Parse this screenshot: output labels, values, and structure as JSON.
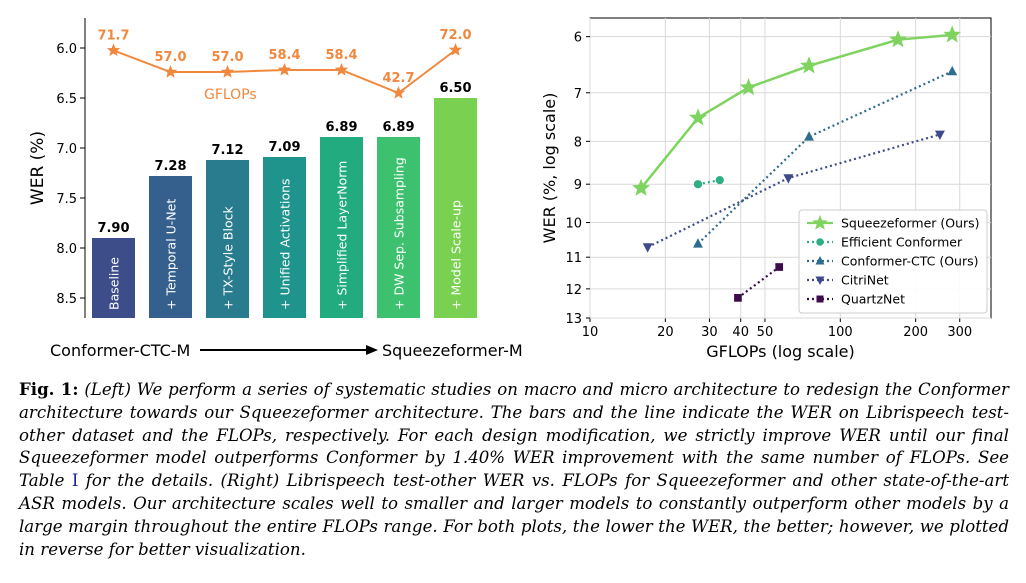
{
  "chart_data": [
    {
      "type": "bar",
      "ylabel": "WER (%)",
      "y_inverted": true,
      "ylim": [
        8.7,
        5.7
      ],
      "yticks": [
        "6.0",
        "6.5",
        "7.0",
        "7.5",
        "8.0",
        "8.5"
      ],
      "categories": [
        "Baseline",
        "+ Temporal U-Net",
        "+ TX-Style Block",
        "+ Unified Activations",
        "+ Simplified LayerNorm",
        "+ DW Sep. Subsampling",
        "+ Model Scale-up"
      ],
      "values": [
        7.9,
        7.28,
        7.12,
        7.09,
        6.89,
        6.89,
        6.5
      ],
      "value_labels": [
        "7.90",
        "7.28",
        "7.12",
        "7.09",
        "6.89",
        "6.89",
        "6.50"
      ],
      "bar_colors": [
        "#3d4d8a",
        "#35608d",
        "#297b8e",
        "#1f948c",
        "#21ab7f",
        "#3ec16f",
        "#7ad151"
      ],
      "line": {
        "name": "GFLOPs",
        "color": "#f0883e",
        "values": [
          71.7,
          57.0,
          57.0,
          58.4,
          58.4,
          42.7,
          72.0
        ],
        "labels": [
          "71.7",
          "57.0",
          "57.0",
          "58.4",
          "58.4",
          "42.7",
          "72.0"
        ]
      },
      "xaxis_left": "Conformer-CTC-M",
      "xaxis_right": "Squeezeformer-M"
    },
    {
      "type": "line",
      "xlabel": "GFLOPs (log scale)",
      "ylabel": "WER (%, log scale)",
      "x_scale": "log",
      "y_scale": "log",
      "y_inverted": true,
      "xlim": [
        10,
        400
      ],
      "ylim": [
        13,
        5.7
      ],
      "xticks": [
        10,
        20,
        30,
        40,
        50,
        100,
        200,
        300
      ],
      "yticks": [
        6,
        7,
        8,
        9,
        10,
        11,
        12,
        13
      ],
      "legend_position": "lower-right",
      "series": [
        {
          "name": "Squeezeformer (Ours)",
          "color": "#7fd35f",
          "marker": "star",
          "linestyle": "solid",
          "x": [
            16,
            27,
            43,
            75,
            170,
            280
          ],
          "y": [
            9.1,
            7.5,
            6.9,
            6.5,
            6.05,
            5.97
          ]
        },
        {
          "name": "Efficient Conformer",
          "color": "#2fae86",
          "marker": "circle",
          "linestyle": "dotted",
          "x": [
            27,
            33
          ],
          "y": [
            9.0,
            8.9
          ]
        },
        {
          "name": "Conformer-CTC (Ours)",
          "color": "#2e6d8c",
          "marker": "triangle-up",
          "linestyle": "dotted",
          "x": [
            27,
            75,
            280
          ],
          "y": [
            10.6,
            7.9,
            6.6
          ]
        },
        {
          "name": "CitriNet",
          "color": "#3e4a8a",
          "marker": "triangle-down",
          "linestyle": "dotted",
          "x": [
            17,
            62,
            250
          ],
          "y": [
            10.7,
            8.85,
            7.85
          ]
        },
        {
          "name": "QuartzNet",
          "color": "#3d0c4a",
          "marker": "square",
          "linestyle": "dotted",
          "x": [
            39,
            57
          ],
          "y": [
            12.3,
            11.3
          ]
        }
      ]
    }
  ],
  "caption": {
    "label": "Fig. 1:",
    "part1": " (Left) We perform a series of systematic studies on macro and micro architecture to redesign the Conformer architecture towards our Squeezeformer architecture. The bars and the line indicate the WER on Librispeech test-other dataset and the FLOPs, respectively. For each design modification, we strictly improve WER until our final Squeezeformer model outperforms Conformer by 1.40% WER improvement with the same number of FLOPs. See Table ",
    "ref": "I",
    "part2": " for the details. (Right) Librispeech test-other WER vs. FLOPs for Squeezeformer and other state-of-the-art ASR models. Our architecture scales well to smaller and larger models to constantly outperform other models by a large margin throughout the entire FLOPs range. For both plots, the lower the WER, the better; however, we plotted in reverse for better visualization."
  }
}
